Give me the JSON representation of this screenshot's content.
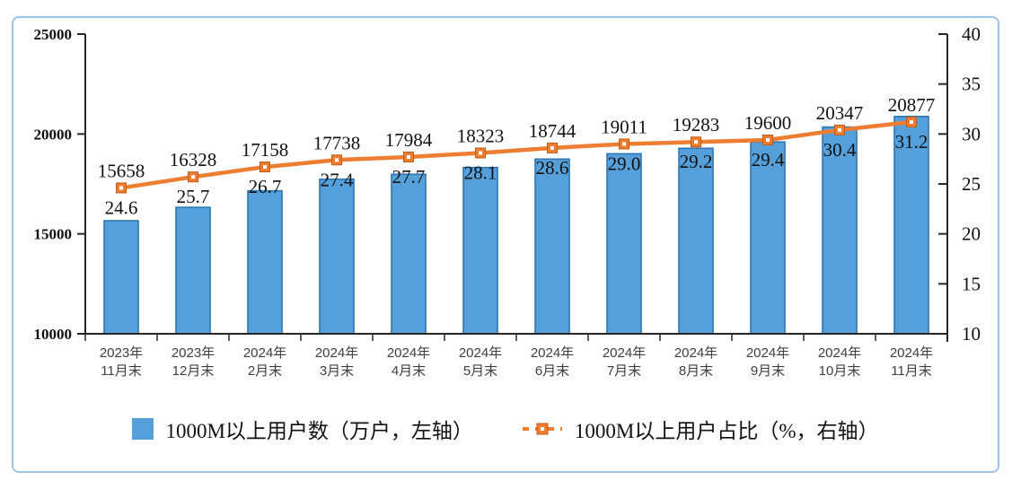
{
  "frame": {
    "border_color": "#9DC3E6",
    "background": "#FFFFFF"
  },
  "chart_data": {
    "type": "bar",
    "categories": [
      "2023年\n11月末",
      "2023年\n12月末",
      "2024年\n2月末",
      "2024年\n3月末",
      "2024年\n4月末",
      "2024年\n5月末",
      "2024年\n6月末",
      "2024年\n7月末",
      "2024年\n8月末",
      "2024年\n9月末",
      "2024年\n10月末",
      "2024年\n11月末"
    ],
    "series": [
      {
        "name": "1000M以上用户数（万户，左轴）",
        "type": "bar",
        "axis": "left",
        "color": "#55A0DA",
        "border_color": "#2E75B6",
        "values": [
          15658,
          16328,
          17158,
          17738,
          17984,
          18323,
          18744,
          19011,
          19283,
          19600,
          20347,
          20877
        ],
        "labels": [
          "15658",
          "16328",
          "17158",
          "17738",
          "17984",
          "18323",
          "18744",
          "19011",
          "19283",
          "19600",
          "20347",
          "20877"
        ]
      },
      {
        "name": "1000M以上用户占比（%，右轴）",
        "type": "line",
        "axis": "right",
        "color": "#ED7D31",
        "marker": "square",
        "marker_border_color": "#C55A11",
        "marker_center_color": "#FFFFFF",
        "values": [
          24.6,
          25.7,
          26.7,
          27.4,
          27.7,
          28.1,
          28.6,
          29.0,
          29.2,
          29.4,
          30.4,
          31.2
        ],
        "labels": [
          "24.6",
          "25.7",
          "26.7",
          "27.4",
          "27.7",
          "28.1",
          "28.6",
          "29.0",
          "29.2",
          "29.4",
          "30.4",
          "31.2"
        ]
      }
    ],
    "left_axis": {
      "min": 10000,
      "max": 25000,
      "ticks": [
        10000,
        15000,
        20000,
        25000
      ],
      "tick_labels": [
        "10000",
        "15000",
        "20000",
        "25000"
      ]
    },
    "right_axis": {
      "min": 10,
      "max": 40,
      "ticks": [
        10,
        15,
        20,
        25,
        30,
        35,
        40
      ],
      "tick_labels": [
        "10",
        "15",
        "20",
        "25",
        "30",
        "35",
        "40"
      ]
    },
    "grid": false,
    "legend_position": "bottom",
    "axis_color": "#262626",
    "x_label_color": "#3F3F3F",
    "data_label_color": "#111111"
  }
}
